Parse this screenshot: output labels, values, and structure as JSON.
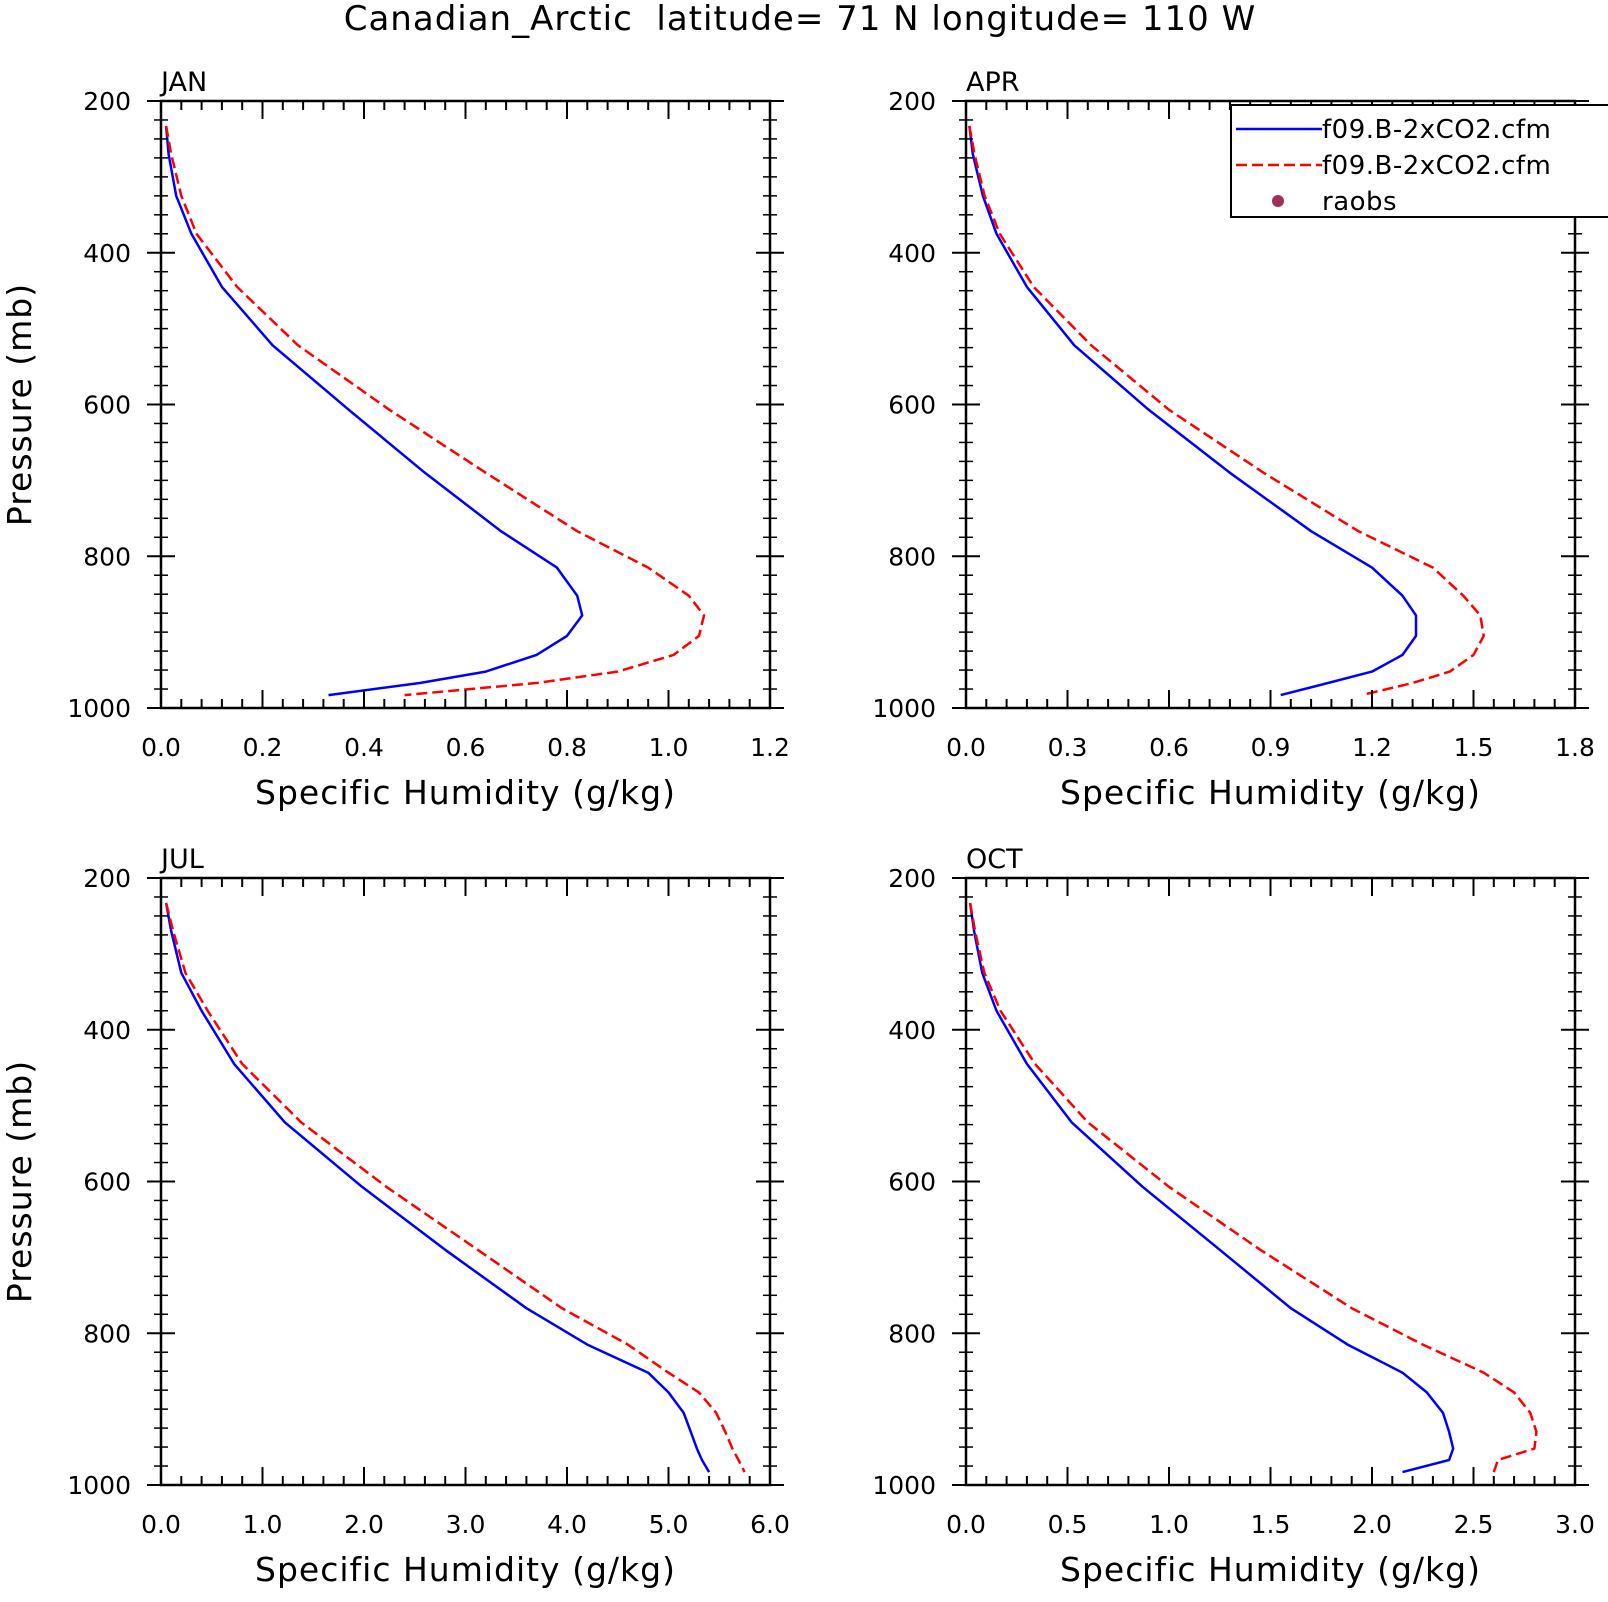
{
  "page_title": "Canadian_Arctic  latitude= 71 N longitude= 110 W",
  "legend": {
    "entries": [
      {
        "label": "f09.B-2xCO2.cfm",
        "color": "#0000ff",
        "style": "solid"
      },
      {
        "label": "f09.B-2xCO2.cfm",
        "color": "#ff0000",
        "style": "dashed"
      },
      {
        "label": "raobs",
        "color": "#a0305a",
        "style": "dot"
      }
    ]
  },
  "chart_data": [
    {
      "type": "line",
      "title": "JAN",
      "xlabel": "Specific Humidity (g/kg)",
      "ylabel": "Pressure (mb)",
      "xlim": [
        0,
        1.2
      ],
      "ylim": [
        1000,
        200
      ],
      "xticks": [
        "0.0",
        "0.2",
        "0.4",
        "0.6",
        "0.8",
        "1.0",
        "1.2"
      ],
      "yticks": [
        "200",
        "400",
        "600",
        "800",
        "1000"
      ],
      "grid": false,
      "series": [
        {
          "color": "#0000ff",
          "style": "solid",
          "points": [
            [
              0.01,
              233
            ],
            [
              0.015,
              270
            ],
            [
              0.03,
              325
            ],
            [
              0.06,
              375
            ],
            [
              0.12,
              445
            ],
            [
              0.22,
              522
            ],
            [
              0.37,
              607
            ],
            [
              0.52,
              690
            ],
            [
              0.67,
              767
            ],
            [
              0.78,
              815
            ],
            [
              0.82,
              852
            ],
            [
              0.83,
              878
            ],
            [
              0.8,
              905
            ],
            [
              0.74,
              930
            ],
            [
              0.64,
              952
            ],
            [
              0.51,
              967
            ],
            [
              0.33,
              983
            ]
          ]
        },
        {
          "color": "#ff0000",
          "style": "dashed",
          "points": [
            [
              0.01,
              233
            ],
            [
              0.02,
              270
            ],
            [
              0.04,
              325
            ],
            [
              0.07,
              375
            ],
            [
              0.15,
              445
            ],
            [
              0.27,
              522
            ],
            [
              0.45,
              607
            ],
            [
              0.64,
              690
            ],
            [
              0.82,
              767
            ],
            [
              0.96,
              815
            ],
            [
              1.04,
              852
            ],
            [
              1.07,
              878
            ],
            [
              1.06,
              905
            ],
            [
              1.01,
              930
            ],
            [
              0.9,
              952
            ],
            [
              0.74,
              967
            ],
            [
              0.48,
              983
            ]
          ]
        }
      ]
    },
    {
      "type": "line",
      "title": "APR",
      "xlabel": "Specific Humidity (g/kg)",
      "ylabel": "",
      "xlim": [
        0,
        1.8
      ],
      "ylim": [
        1000,
        200
      ],
      "xticks": [
        "0.0",
        "0.3",
        "0.6",
        "0.9",
        "1.2",
        "1.5",
        "1.8"
      ],
      "yticks": [
        "200",
        "400",
        "600",
        "800",
        "1000"
      ],
      "grid": false,
      "series": [
        {
          "color": "#0000ff",
          "style": "solid",
          "points": [
            [
              0.01,
              233
            ],
            [
              0.02,
              270
            ],
            [
              0.05,
              325
            ],
            [
              0.09,
              375
            ],
            [
              0.18,
              445
            ],
            [
              0.32,
              522
            ],
            [
              0.54,
              607
            ],
            [
              0.78,
              690
            ],
            [
              1.02,
              767
            ],
            [
              1.2,
              815
            ],
            [
              1.29,
              852
            ],
            [
              1.33,
              878
            ],
            [
              1.33,
              905
            ],
            [
              1.29,
              930
            ],
            [
              1.2,
              952
            ],
            [
              1.07,
              967
            ],
            [
              0.93,
              983
            ]
          ]
        },
        {
          "color": "#ff0000",
          "style": "dashed",
          "points": [
            [
              0.01,
              233
            ],
            [
              0.025,
              270
            ],
            [
              0.055,
              325
            ],
            [
              0.1,
              375
            ],
            [
              0.2,
              445
            ],
            [
              0.37,
              522
            ],
            [
              0.6,
              607
            ],
            [
              0.88,
              690
            ],
            [
              1.16,
              767
            ],
            [
              1.38,
              815
            ],
            [
              1.47,
              852
            ],
            [
              1.52,
              878
            ],
            [
              1.53,
              905
            ],
            [
              1.5,
              930
            ],
            [
              1.43,
              952
            ],
            [
              1.32,
              967
            ],
            [
              1.17,
              983
            ]
          ]
        }
      ]
    },
    {
      "type": "line",
      "title": "JUL",
      "xlabel": "Specific Humidity (g/kg)",
      "ylabel": "Pressure (mb)",
      "xlim": [
        0,
        6.0
      ],
      "ylim": [
        1000,
        200
      ],
      "xticks": [
        "0.0",
        "1.0",
        "2.0",
        "3.0",
        "4.0",
        "5.0",
        "6.0"
      ],
      "yticks": [
        "200",
        "400",
        "600",
        "800",
        "1000"
      ],
      "grid": false,
      "series": [
        {
          "color": "#0000ff",
          "style": "solid",
          "points": [
            [
              0.05,
              233
            ],
            [
              0.1,
              270
            ],
            [
              0.2,
              325
            ],
            [
              0.4,
              375
            ],
            [
              0.72,
              445
            ],
            [
              1.22,
              522
            ],
            [
              1.98,
              607
            ],
            [
              2.8,
              690
            ],
            [
              3.6,
              767
            ],
            [
              4.2,
              815
            ],
            [
              4.8,
              852
            ],
            [
              5.0,
              878
            ],
            [
              5.15,
              905
            ],
            [
              5.22,
              930
            ],
            [
              5.28,
              952
            ],
            [
              5.33,
              967
            ],
            [
              5.4,
              983
            ]
          ]
        },
        {
          "color": "#ff0000",
          "style": "dashed",
          "points": [
            [
              0.05,
              233
            ],
            [
              0.12,
              270
            ],
            [
              0.24,
              325
            ],
            [
              0.46,
              375
            ],
            [
              0.8,
              445
            ],
            [
              1.38,
              522
            ],
            [
              2.22,
              607
            ],
            [
              3.12,
              690
            ],
            [
              3.95,
              767
            ],
            [
              4.6,
              815
            ],
            [
              5.0,
              852
            ],
            [
              5.3,
              878
            ],
            [
              5.47,
              905
            ],
            [
              5.56,
              930
            ],
            [
              5.63,
              952
            ],
            [
              5.69,
              967
            ],
            [
              5.75,
              983
            ]
          ]
        }
      ]
    },
    {
      "type": "line",
      "title": "OCT",
      "xlabel": "Specific Humidity (g/kg)",
      "ylabel": "",
      "xlim": [
        0,
        3.0
      ],
      "ylim": [
        1000,
        200
      ],
      "xticks": [
        "0.0",
        "0.5",
        "1.0",
        "1.5",
        "2.0",
        "2.5",
        "3.0"
      ],
      "yticks": [
        "200",
        "400",
        "600",
        "800",
        "1000"
      ],
      "grid": false,
      "series": [
        {
          "color": "#0000ff",
          "style": "solid",
          "points": [
            [
              0.02,
              233
            ],
            [
              0.04,
              270
            ],
            [
              0.08,
              325
            ],
            [
              0.15,
              375
            ],
            [
              0.3,
              445
            ],
            [
              0.52,
              522
            ],
            [
              0.87,
              607
            ],
            [
              1.25,
              690
            ],
            [
              1.6,
              767
            ],
            [
              1.88,
              815
            ],
            [
              2.15,
              852
            ],
            [
              2.27,
              878
            ],
            [
              2.35,
              905
            ],
            [
              2.38,
              930
            ],
            [
              2.4,
              952
            ],
            [
              2.38,
              967
            ],
            [
              2.15,
              983
            ]
          ]
        },
        {
          "color": "#ff0000",
          "style": "dashed",
          "points": [
            [
              0.02,
              233
            ],
            [
              0.045,
              270
            ],
            [
              0.09,
              325
            ],
            [
              0.17,
              375
            ],
            [
              0.34,
              445
            ],
            [
              0.6,
              522
            ],
            [
              1.0,
              607
            ],
            [
              1.45,
              690
            ],
            [
              1.9,
              767
            ],
            [
              2.25,
              815
            ],
            [
              2.55,
              852
            ],
            [
              2.7,
              878
            ],
            [
              2.78,
              905
            ],
            [
              2.81,
              930
            ],
            [
              2.8,
              952
            ],
            [
              2.62,
              967
            ],
            [
              2.6,
              983
            ]
          ]
        }
      ]
    }
  ]
}
